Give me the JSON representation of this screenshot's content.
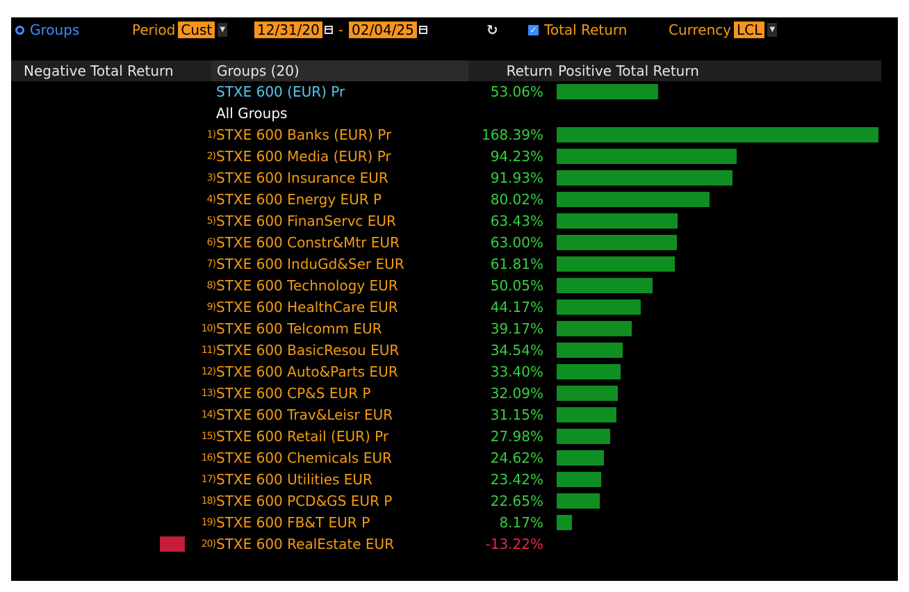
{
  "toolbar": {
    "groups_label": "Groups",
    "period_label": "Period",
    "period_value": "Cust",
    "start_date": "12/31/20",
    "date_separator": "-",
    "end_date": "02/04/25",
    "total_return_label": "Total Return",
    "currency_label": "Currency",
    "currency_value": "LCL"
  },
  "header": {
    "negative": "Negative Total Return",
    "groups": "Groups (20)",
    "return": "Return",
    "positive": "Positive Total Return"
  },
  "benchmark": {
    "name": "STXE 600 (EUR) Pr",
    "return": "53.06%",
    "value": 53.06
  },
  "section_label": "All Groups",
  "max_scale": 168.39,
  "colors": {
    "positive": "#33d13f",
    "negative": "#e8264b",
    "orange": "#f39c12",
    "bar_positive": "#0f8f22",
    "bar_negative": "#c41e3a",
    "benchmark": "#56c8f0"
  },
  "rows": [
    {
      "num": "1)",
      "name": "STXE 600 Banks (EUR) Pr",
      "return": "168.39%",
      "value": 168.39
    },
    {
      "num": "2)",
      "name": "STXE 600 Media (EUR) Pr",
      "return": "94.23%",
      "value": 94.23
    },
    {
      "num": "3)",
      "name": "STXE 600 Insurance EUR",
      "return": "91.93%",
      "value": 91.93
    },
    {
      "num": "4)",
      "name": "STXE 600 Energy EUR P",
      "return": "80.02%",
      "value": 80.02
    },
    {
      "num": "5)",
      "name": "STXE 600 FinanServc EUR",
      "return": "63.43%",
      "value": 63.43
    },
    {
      "num": "6)",
      "name": "STXE 600 Constr&Mtr EUR",
      "return": "63.00%",
      "value": 63.0
    },
    {
      "num": "7)",
      "name": "STXE 600 InduGd&Ser EUR",
      "return": "61.81%",
      "value": 61.81
    },
    {
      "num": "8)",
      "name": "STXE 600 Technology EUR",
      "return": "50.05%",
      "value": 50.05
    },
    {
      "num": "9)",
      "name": "STXE 600 HealthCare EUR",
      "return": "44.17%",
      "value": 44.17
    },
    {
      "num": "10)",
      "name": "STXE 600 Telcomm EUR",
      "return": "39.17%",
      "value": 39.17
    },
    {
      "num": "11)",
      "name": "STXE 600 BasicResou EUR",
      "return": "34.54%",
      "value": 34.54
    },
    {
      "num": "12)",
      "name": "STXE 600 Auto&Parts EUR",
      "return": "33.40%",
      "value": 33.4
    },
    {
      "num": "13)",
      "name": "STXE 600 CP&S EUR P",
      "return": "32.09%",
      "value": 32.09
    },
    {
      "num": "14)",
      "name": "STXE 600 Trav&Leisr EUR",
      "return": "31.15%",
      "value": 31.15
    },
    {
      "num": "15)",
      "name": "STXE 600 Retail (EUR) Pr",
      "return": "27.98%",
      "value": 27.98
    },
    {
      "num": "16)",
      "name": "STXE 600 Chemicals EUR",
      "return": "24.62%",
      "value": 24.62
    },
    {
      "num": "17)",
      "name": "STXE 600 Utilities EUR",
      "return": "23.42%",
      "value": 23.42
    },
    {
      "num": "18)",
      "name": "STXE 600 PCD&GS EUR P",
      "return": "22.65%",
      "value": 22.65
    },
    {
      "num": "19)",
      "name": "STXE 600 FB&T EUR P",
      "return": "8.17%",
      "value": 8.17
    },
    {
      "num": "20)",
      "name": "STXE 600 RealEstate EUR",
      "return": "-13.22%",
      "value": -13.22
    }
  ]
}
